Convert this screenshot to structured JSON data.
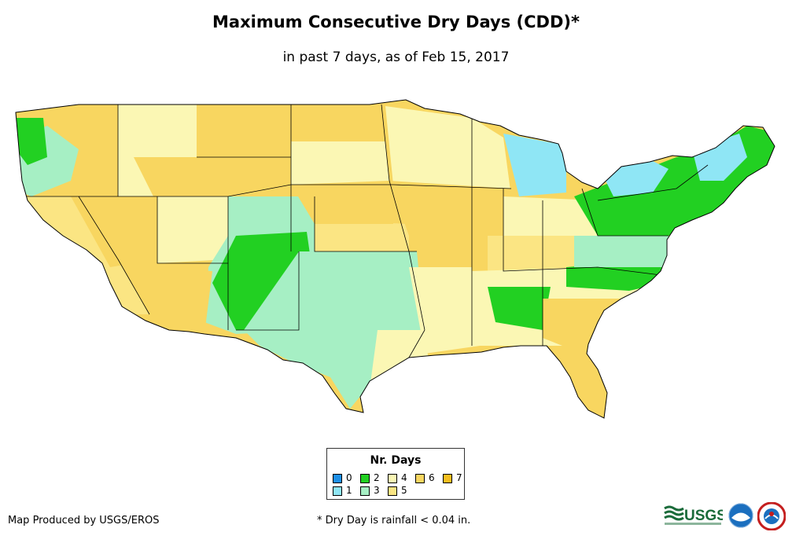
{
  "map": {
    "title": "Maximum Consecutive Dry Days (CDD)*",
    "subtitle": "in past 7 days, as of Feb 15, 2017",
    "region": "Contiguous United States"
  },
  "legend": {
    "title": "Nr. Days",
    "items": [
      {
        "label": "0",
        "color": "#1e90e8"
      },
      {
        "label": "1",
        "color": "#8fe6f5"
      },
      {
        "label": "2",
        "color": "#22d022"
      },
      {
        "label": "3",
        "color": "#a6efc4"
      },
      {
        "label": "4",
        "color": "#fbf7b4"
      },
      {
        "label": "5",
        "color": "#fbe583"
      },
      {
        "label": "6",
        "color": "#f8d660"
      },
      {
        "label": "7",
        "color": "#f6be1f"
      }
    ]
  },
  "footer": {
    "credit": "Map Produced by USGS/EROS",
    "footnote": "* Dry Day is rainfall < 0.04 in.",
    "logos": [
      "USGS",
      "NOAA",
      "NWS"
    ]
  }
}
